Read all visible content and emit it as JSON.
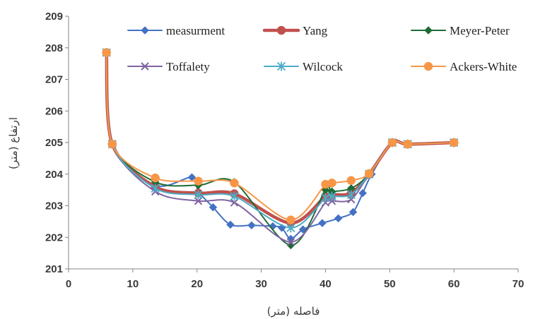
{
  "chart_data": {
    "type": "line",
    "title": "",
    "xlabel": "فاصله  (متر)",
    "ylabel": "ارتفاع  (متر)",
    "xlim": [
      0,
      70
    ],
    "ylim": [
      201,
      209
    ],
    "xticks": [
      0,
      10,
      20,
      30,
      40,
      50,
      60,
      70
    ],
    "yticks": [
      201,
      202,
      203,
      204,
      205,
      206,
      207,
      208,
      209
    ],
    "grid": false,
    "legend": "top",
    "series": [
      {
        "name": "measurment",
        "color": "#4472c4",
        "marker": "diamond",
        "width": 2,
        "points": [
          [
            5.9,
            207.85
          ],
          [
            6.8,
            204.95
          ],
          [
            13.5,
            203.65
          ],
          [
            19.2,
            203.9
          ],
          [
            20.2,
            203.45
          ],
          [
            22.5,
            202.95
          ],
          [
            25.2,
            202.4
          ],
          [
            28.5,
            202.38
          ],
          [
            31.8,
            202.35
          ],
          [
            33.2,
            202.3
          ],
          [
            34.6,
            201.95
          ],
          [
            36.5,
            202.25
          ],
          [
            39.5,
            202.45
          ],
          [
            42.0,
            202.6
          ],
          [
            44.3,
            202.8
          ],
          [
            45.8,
            203.4
          ],
          [
            47.2,
            204.0
          ],
          [
            50.4,
            205.0
          ],
          [
            52.8,
            204.95
          ],
          [
            60.0,
            205.0
          ]
        ]
      },
      {
        "name": "Yang",
        "color": "#c0504d",
        "marker": "circle",
        "width": 4.5,
        "points": [
          [
            5.9,
            207.85
          ],
          [
            6.8,
            204.95
          ],
          [
            13.5,
            203.6
          ],
          [
            20.2,
            203.4
          ],
          [
            25.8,
            203.38
          ],
          [
            34.6,
            202.45
          ],
          [
            40.0,
            203.3
          ],
          [
            41.0,
            203.35
          ],
          [
            44.0,
            203.4
          ],
          [
            46.8,
            204.0
          ],
          [
            50.4,
            205.0
          ],
          [
            52.8,
            204.95
          ],
          [
            60.0,
            205.0
          ]
        ]
      },
      {
        "name": "Meyer-Peter",
        "color": "#1e6b35",
        "marker": "diamond",
        "width": 2,
        "points": [
          [
            5.9,
            207.85
          ],
          [
            6.8,
            204.95
          ],
          [
            13.5,
            203.75
          ],
          [
            20.2,
            203.65
          ],
          [
            25.8,
            203.75
          ],
          [
            34.6,
            201.75
          ],
          [
            40.0,
            203.5
          ],
          [
            41.0,
            203.45
          ],
          [
            44.0,
            203.55
          ],
          [
            46.8,
            204.0
          ],
          [
            50.4,
            205.0
          ],
          [
            52.8,
            204.95
          ],
          [
            60.0,
            205.0
          ]
        ]
      },
      {
        "name": "Toffalety",
        "color": "#8064a2",
        "marker": "x",
        "width": 2,
        "points": [
          [
            5.9,
            207.85
          ],
          [
            6.8,
            204.95
          ],
          [
            13.5,
            203.45
          ],
          [
            20.2,
            203.15
          ],
          [
            25.8,
            203.1
          ],
          [
            34.6,
            201.85
          ],
          [
            40.0,
            203.1
          ],
          [
            41.0,
            203.15
          ],
          [
            44.0,
            203.2
          ],
          [
            46.8,
            204.0
          ],
          [
            50.4,
            205.0
          ],
          [
            52.8,
            204.95
          ],
          [
            60.0,
            205.0
          ]
        ]
      },
      {
        "name": "Wilcock",
        "color": "#4bacc6",
        "marker": "star",
        "width": 2,
        "points": [
          [
            5.9,
            207.85
          ],
          [
            6.8,
            204.95
          ],
          [
            13.5,
            203.55
          ],
          [
            20.2,
            203.35
          ],
          [
            25.8,
            203.3
          ],
          [
            34.6,
            202.3
          ],
          [
            40.0,
            203.25
          ],
          [
            41.0,
            203.3
          ],
          [
            44.0,
            203.35
          ],
          [
            46.8,
            204.0
          ],
          [
            50.4,
            205.0
          ],
          [
            52.8,
            204.95
          ],
          [
            60.0,
            205.0
          ]
        ]
      },
      {
        "name": "Ackers-White",
        "color": "#f79646",
        "marker": "circle",
        "width": 2,
        "points": [
          [
            5.9,
            207.85
          ],
          [
            6.8,
            204.95
          ],
          [
            13.5,
            203.88
          ],
          [
            20.2,
            203.78
          ],
          [
            25.8,
            203.72
          ],
          [
            34.6,
            202.55
          ],
          [
            40.0,
            203.68
          ],
          [
            41.0,
            203.72
          ],
          [
            44.0,
            203.8
          ],
          [
            46.8,
            204.02
          ],
          [
            50.4,
            205.0
          ],
          [
            52.8,
            204.95
          ],
          [
            60.0,
            205.0
          ]
        ]
      }
    ]
  }
}
